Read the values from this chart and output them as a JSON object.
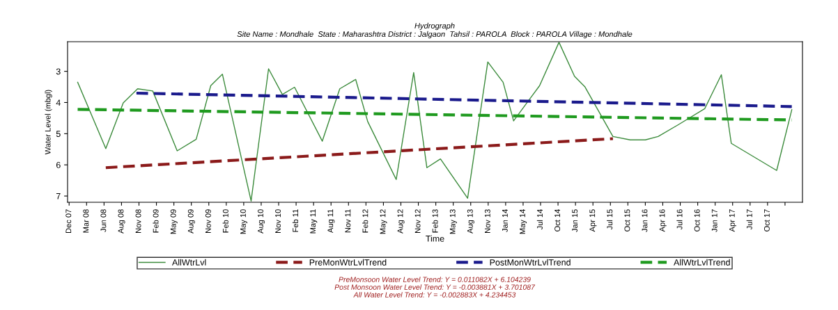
{
  "chart_data": {
    "type": "line",
    "title": "Hydrograph",
    "subtitle": "Site Name : Mondhale  State : Maharashtra District : Jalgaon  Tahsil : PAROLA  Block : PAROLA Village : Mondhale",
    "xlabel": "Time",
    "ylabel": "Water Level (mbgl)",
    "xlim": [
      "2007-11-26",
      "2018-04-10"
    ],
    "ylim": [
      7.2,
      2.05
    ],
    "yticks": [
      3,
      4,
      5,
      6,
      7
    ],
    "xticks": [
      {
        "value": "2007-12-04",
        "label": "Dec 07"
      },
      {
        "value": "2008-03-03",
        "label": "Mar 08"
      },
      {
        "value": "2008-06-01",
        "label": "Jun 08"
      },
      {
        "value": "2008-08-30",
        "label": "Aug 08"
      },
      {
        "value": "2008-11-28",
        "label": "Nov 08"
      },
      {
        "value": "2009-02-26",
        "label": "Feb 09"
      },
      {
        "value": "2009-05-27",
        "label": "May 09"
      },
      {
        "value": "2009-08-25",
        "label": "Aug 09"
      },
      {
        "value": "2009-11-23",
        "label": "Nov 09"
      },
      {
        "value": "2010-02-21",
        "label": "Feb 10"
      },
      {
        "value": "2010-05-22",
        "label": "May 10"
      },
      {
        "value": "2010-08-20",
        "label": "Aug 10"
      },
      {
        "value": "2010-11-18",
        "label": "Nov 10"
      },
      {
        "value": "2011-02-16",
        "label": "Feb 11"
      },
      {
        "value": "2011-05-17",
        "label": "May 11"
      },
      {
        "value": "2011-08-15",
        "label": "Aug 11"
      },
      {
        "value": "2011-11-13",
        "label": "Nov 11"
      },
      {
        "value": "2012-02-11",
        "label": "Feb 12"
      },
      {
        "value": "2012-05-11",
        "label": "May 12"
      },
      {
        "value": "2012-08-09",
        "label": "Aug 12"
      },
      {
        "value": "2012-11-07",
        "label": "Nov 12"
      },
      {
        "value": "2013-02-05",
        "label": "Feb 13"
      },
      {
        "value": "2013-05-06",
        "label": "May 13"
      },
      {
        "value": "2013-08-04",
        "label": "Aug 13"
      },
      {
        "value": "2013-11-02",
        "label": "Nov 13"
      },
      {
        "value": "2014-01-31",
        "label": "Jan 14"
      },
      {
        "value": "2014-05-01",
        "label": "May 14"
      },
      {
        "value": "2014-07-30",
        "label": "Jul 14"
      },
      {
        "value": "2014-10-28",
        "label": "Oct 14"
      },
      {
        "value": "2015-01-26",
        "label": "Jan 15"
      },
      {
        "value": "2015-04-26",
        "label": "Apr 15"
      },
      {
        "value": "2015-07-25",
        "label": "Jul 15"
      },
      {
        "value": "2015-10-23",
        "label": "Oct 15"
      },
      {
        "value": "2016-01-21",
        "label": "Jan 16"
      },
      {
        "value": "2016-04-20",
        "label": "Apr 16"
      },
      {
        "value": "2016-07-19",
        "label": "Jul 16"
      },
      {
        "value": "2016-10-17",
        "label": "Oct 16"
      },
      {
        "value": "2017-01-15",
        "label": "Jan 17"
      },
      {
        "value": "2017-04-15",
        "label": "Apr 17"
      },
      {
        "value": "2017-07-14",
        "label": "Jul 17"
      },
      {
        "value": "2017-10-12",
        "label": "Oct 17"
      },
      {
        "value": "2018-01-10",
        "label": null
      }
    ],
    "series": [
      {
        "name": "AllWtrLvl",
        "color": "#3a8a3a",
        "line_style": "solid",
        "x": [
          "2008-01-17",
          "2008-06-10",
          "2008-09-08",
          "2008-11-21",
          "2009-02-07",
          "2009-06-13",
          "2009-09-19",
          "2009-12-03",
          "2010-02-01",
          "2010-06-29",
          "2010-09-27",
          "2010-12-07",
          "2011-02-08",
          "2011-07-01",
          "2011-09-29",
          "2011-12-20",
          "2012-02-20",
          "2012-07-16",
          "2012-10-14",
          "2012-12-21",
          "2013-03-01",
          "2013-07-19",
          "2013-10-31",
          "2014-01-18",
          "2014-03-13",
          "2014-07-25",
          "2014-11-02",
          "2015-01-21",
          "2015-03-16",
          "2015-08-07",
          "2015-11-04",
          "2016-01-21",
          "2016-03-27",
          "2016-07-07",
          "2016-11-22",
          "2017-02-16",
          "2017-04-08",
          "2017-11-28",
          "2018-02-14"
        ],
        "values": [
          3.35,
          5.48,
          4.01,
          3.56,
          3.63,
          5.55,
          5.18,
          3.46,
          3.09,
          7.16,
          2.92,
          3.74,
          3.51,
          5.24,
          3.56,
          3.26,
          4.61,
          6.47,
          3.04,
          6.09,
          5.81,
          7.07,
          2.7,
          3.35,
          4.59,
          3.46,
          2.07,
          3.16,
          3.5,
          5.09,
          5.2,
          5.2,
          5.09,
          4.72,
          4.2,
          3.11,
          5.31,
          6.18,
          4.23
        ]
      },
      {
        "name": "PreMonWtrLvlTrend",
        "color": "#8b1a1a",
        "line_style": "dashed",
        "x": [
          "2008-06-10",
          "2015-08-07"
        ],
        "values": [
          6.09,
          5.16
        ]
      },
      {
        "name": "PostMonWtrLvlTrend",
        "color": "#1a1a8c",
        "line_style": "dashed",
        "x": [
          "2008-11-15",
          "2018-02-14"
        ],
        "values": [
          3.7,
          4.13
        ]
      },
      {
        "name": "AllWtrLvlTrend",
        "color": "#1f9a1f",
        "line_style": "dashed",
        "x": [
          "2008-01-17",
          "2018-02-14"
        ],
        "values": [
          4.22,
          4.56
        ]
      }
    ],
    "legend": "bottom",
    "grid": false,
    "marker": "none",
    "annotations": [
      "PreMonsoon Water Level Trend: Y = 0.011082X + 6.104239",
      "Post Monsoon Water Level Trend: Y = -0.003881X + 3.701087",
      "All Water Level Trend: Y = -0.002883X + 4.234453"
    ]
  }
}
